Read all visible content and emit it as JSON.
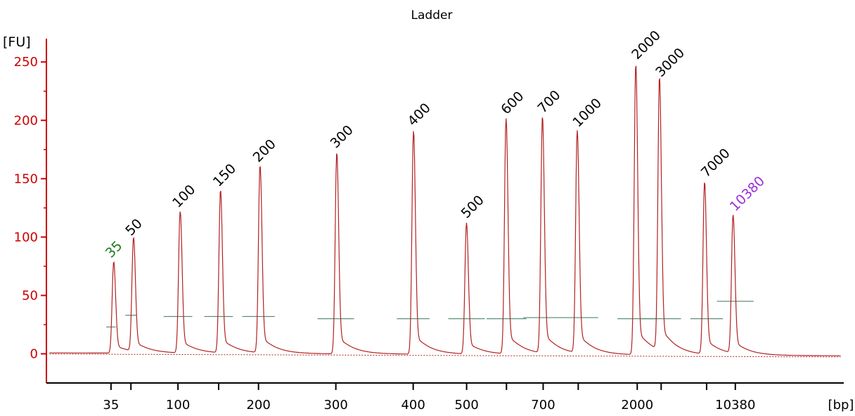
{
  "chart_data": {
    "type": "line",
    "title": "Ladder",
    "ylabel": "[FU]",
    "xlabel": "[bp]",
    "ylim": [
      -25,
      270
    ],
    "yticks": [
      0,
      50,
      100,
      150,
      200,
      250
    ],
    "xticks": [
      {
        "label": "35",
        "pos": 0.081
      },
      {
        "label": "",
        "pos": 0.106
      },
      {
        "label": "100",
        "pos": 0.165
      },
      {
        "label": "",
        "pos": 0.216
      },
      {
        "label": "200",
        "pos": 0.266
      },
      {
        "label": "300",
        "pos": 0.363
      },
      {
        "label": "400",
        "pos": 0.46
      },
      {
        "label": "500",
        "pos": 0.527
      },
      {
        "label": "",
        "pos": 0.577
      },
      {
        "label": "700",
        "pos": 0.623
      },
      {
        "label": "",
        "pos": 0.667
      },
      {
        "label": "2000",
        "pos": 0.741
      },
      {
        "label": "",
        "pos": 0.771
      },
      {
        "label": "",
        "pos": 0.828
      },
      {
        "label": "10380",
        "pos": 0.864
      }
    ],
    "peaks": [
      {
        "label": "35",
        "pos": 0.081,
        "height": 78,
        "color": "green",
        "baseline_mark": 23,
        "mark_w": 0.012
      },
      {
        "label": "50",
        "pos": 0.106,
        "height": 97,
        "color": "black",
        "baseline_mark": 33,
        "mark_w": 0.014
      },
      {
        "label": "100",
        "pos": 0.165,
        "height": 121,
        "color": "black",
        "baseline_mark": 32,
        "mark_w": 0.036
      },
      {
        "label": "150",
        "pos": 0.216,
        "height": 139,
        "color": "black",
        "baseline_mark": 32,
        "mark_w": 0.036
      },
      {
        "label": "200",
        "pos": 0.266,
        "height": 160,
        "color": "black",
        "baseline_mark": 32,
        "mark_w": 0.041
      },
      {
        "label": "300",
        "pos": 0.363,
        "height": 172,
        "color": "black",
        "baseline_mark": 30,
        "mark_w": 0.046
      },
      {
        "label": "400",
        "pos": 0.46,
        "height": 191,
        "color": "black",
        "baseline_mark": 30,
        "mark_w": 0.041
      },
      {
        "label": "500",
        "pos": 0.527,
        "height": 112,
        "color": "black",
        "baseline_mark": 30,
        "mark_w": 0.046
      },
      {
        "label": "600",
        "pos": 0.577,
        "height": 201,
        "color": "black",
        "baseline_mark": 30,
        "mark_w": 0.05
      },
      {
        "label": "700",
        "pos": 0.623,
        "height": 202,
        "color": "black",
        "baseline_mark": 31,
        "mark_w": 0.05
      },
      {
        "label": "1000",
        "pos": 0.667,
        "height": 190,
        "color": "black",
        "baseline_mark": 31,
        "mark_w": 0.05
      },
      {
        "label": "2000",
        "pos": 0.741,
        "height": 248,
        "color": "black",
        "baseline_mark": 30,
        "mark_w": 0.05
      },
      {
        "label": "3000",
        "pos": 0.771,
        "height": 233,
        "color": "black",
        "baseline_mark": 30,
        "mark_w": 0.05
      },
      {
        "label": "7000",
        "pos": 0.828,
        "height": 147,
        "color": "black",
        "baseline_mark": 30,
        "mark_w": 0.041
      },
      {
        "label": "10380",
        "pos": 0.864,
        "height": 118,
        "color": "purple",
        "baseline_mark": 45,
        "mark_w": 0.046
      }
    ]
  },
  "colors": {
    "axis": "#cc0000",
    "trace": "#b22222",
    "baseline_mark": "#3a7a5a",
    "label_black": "#000000",
    "label_green": "#1e7a1e",
    "label_purple": "#9b30d9"
  }
}
